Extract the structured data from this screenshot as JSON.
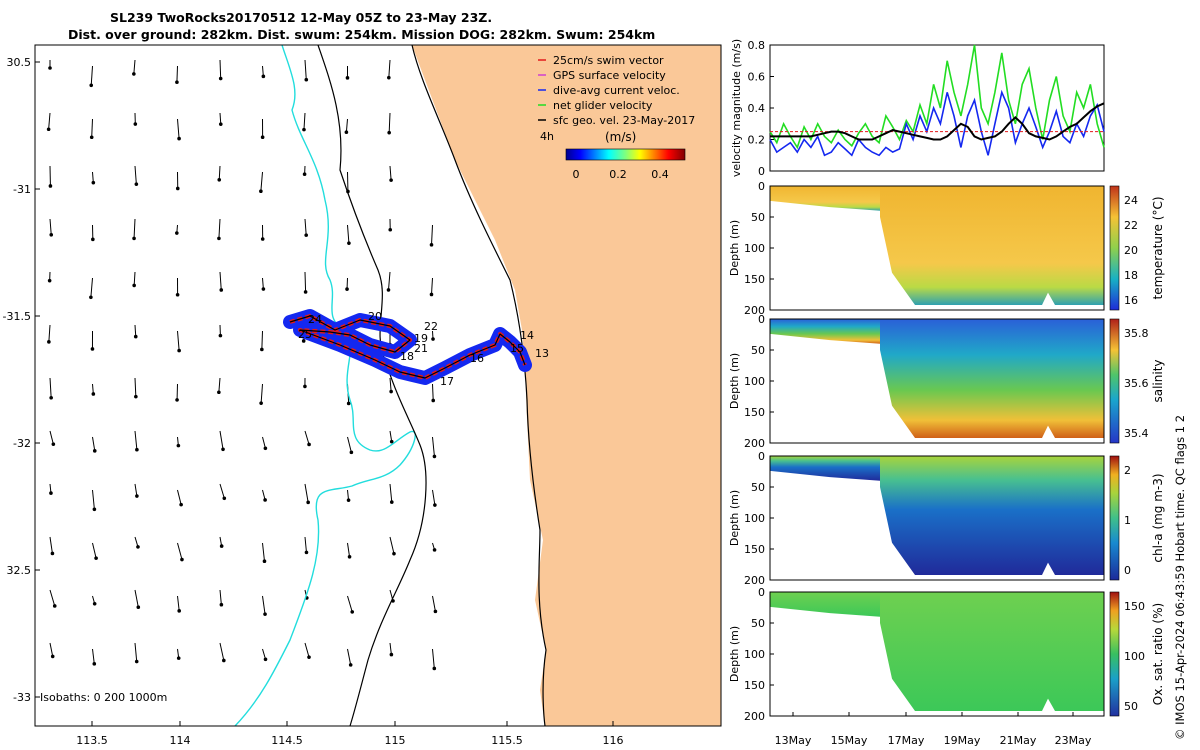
{
  "title": {
    "line1": "SL239 TwoRocks20170512 12-May 05Z to 23-May 23Z.",
    "line2": "Dist. over ground: 282km. Dist. swum: 254km. Mission DOG: 282km. Swum: 254km"
  },
  "colors": {
    "land": "#fac898",
    "coast_200m": "#22dddd",
    "swim": "#e31a1c",
    "gps": "#d040d0",
    "current": "#1428f0",
    "net": "#22dd22"
  },
  "map": {
    "lon_ticks": [
      "113.5",
      "114",
      "114.5",
      "115",
      "115.5",
      "116"
    ],
    "lat_ticks": [
      "30.5",
      "-31",
      "-31.5",
      "-32",
      "32.5",
      "-33"
    ],
    "legend": [
      {
        "label": "25cm/s swim vector",
        "color": "#e31a1c"
      },
      {
        "label": "GPS surface velocity",
        "color": "#d040d0"
      },
      {
        "label": "dive-avg current veloc.",
        "color": "#1428f0"
      },
      {
        "label": "net glider velocity",
        "color": "#22dd22"
      },
      {
        "label": "sfc geo. vel. 23-May-2017",
        "color": "#000000"
      }
    ],
    "legend_4h": "4h",
    "colorbar_units": "(m/s)",
    "colorbar_ticks": [
      "0",
      "0.2",
      "0.4"
    ],
    "isobaths": "Isobaths: 0   200  1000m",
    "track_labels": [
      "24",
      "25",
      "20",
      "22",
      "19",
      "21",
      "18",
      "17",
      "16",
      "15",
      "14",
      "13"
    ]
  },
  "side": {
    "velocity": {
      "ylabel": "velocity magnitude (m/s)",
      "ticks": [
        "0.8",
        "0.6",
        "0.4",
        "0.2",
        "0"
      ],
      "series": {
        "net": [
          0.25,
          0.18,
          0.3,
          0.22,
          0.15,
          0.28,
          0.2,
          0.3,
          0.22,
          0.18,
          0.26,
          0.2,
          0.16,
          0.24,
          0.3,
          0.22,
          0.18,
          0.35,
          0.28,
          0.2,
          0.32,
          0.25,
          0.42,
          0.3,
          0.55,
          0.4,
          0.7,
          0.5,
          0.35,
          0.55,
          0.8,
          0.4,
          0.3,
          0.5,
          0.75,
          0.45,
          0.3,
          0.55,
          0.65,
          0.4,
          0.2,
          0.45,
          0.6,
          0.35,
          0.25,
          0.5,
          0.4,
          0.55,
          0.3,
          0.15
        ],
        "current": [
          0.2,
          0.12,
          0.15,
          0.18,
          0.12,
          0.2,
          0.15,
          0.22,
          0.1,
          0.12,
          0.18,
          0.14,
          0.1,
          0.2,
          0.15,
          0.12,
          0.1,
          0.15,
          0.12,
          0.14,
          0.3,
          0.2,
          0.35,
          0.25,
          0.4,
          0.3,
          0.5,
          0.35,
          0.15,
          0.35,
          0.45,
          0.25,
          0.1,
          0.3,
          0.5,
          0.4,
          0.18,
          0.3,
          0.4,
          0.28,
          0.15,
          0.25,
          0.38,
          0.22,
          0.18,
          0.3,
          0.22,
          0.35,
          0.42,
          0.25
        ],
        "geo": [
          0.22,
          0.22,
          0.22,
          0.22,
          0.22,
          0.22,
          0.22,
          0.23,
          0.24,
          0.25,
          0.25,
          0.24,
          0.22,
          0.2,
          0.2,
          0.2,
          0.22,
          0.24,
          0.26,
          0.25,
          0.24,
          0.23,
          0.22,
          0.21,
          0.2,
          0.2,
          0.22,
          0.26,
          0.3,
          0.28,
          0.22,
          0.2,
          0.21,
          0.22,
          0.25,
          0.3,
          0.34,
          0.3,
          0.24,
          0.22,
          0.21,
          0.2,
          0.22,
          0.25,
          0.28,
          0.3,
          0.34,
          0.38,
          0.41,
          0.43
        ]
      }
    },
    "temperature": {
      "ylabel": "Depth (m)",
      "clabel": "temperature (°C)",
      "cticks": [
        "24",
        "22",
        "20",
        "18",
        "16"
      ]
    },
    "salinity": {
      "ylabel": "Depth (m)",
      "clabel": "salinity",
      "cticks": [
        "35.8",
        "35.6",
        "35.4"
      ]
    },
    "chla": {
      "ylabel": "Depth (m)",
      "clabel": "chl-a (mg m-3)",
      "cticks": [
        "2",
        "1",
        "0"
      ]
    },
    "oxygen": {
      "ylabel": "Depth (m)",
      "clabel": "Ox. sat. ratio (%)",
      "cticks": [
        "150",
        "100",
        "50"
      ]
    },
    "depth_ticks": [
      "0",
      "50",
      "100",
      "150",
      "200"
    ],
    "date_ticks": [
      "13May",
      "15May",
      "17May",
      "19May",
      "21May",
      "23May"
    ],
    "footer": "© IMOS 15-Apr-2024 06:43:59 Hobart time. QC flags 1  2"
  }
}
